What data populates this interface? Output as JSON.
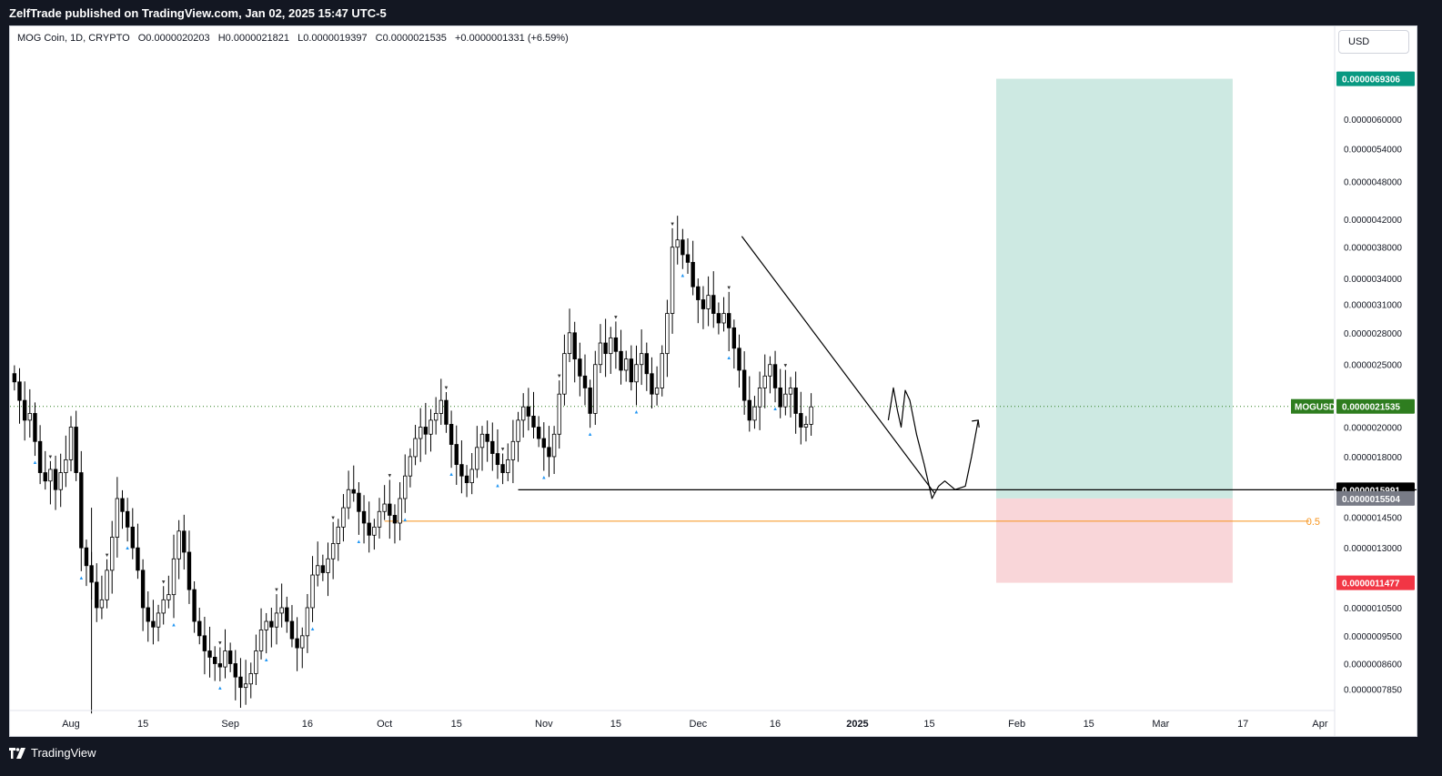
{
  "header": {
    "publisher": "ZelfTrade published on TradingView.com, Jan 02, 2025 15:47 UTC-5"
  },
  "symbol_info": {
    "name": "MOG Coin, 1D, CRYPTO",
    "open": "O0.0000020203",
    "high": "H0.0000021821",
    "low": "L0.0000019397",
    "close": "C0.0000021535",
    "change": "+0.0000001331 (+6.59%)"
  },
  "currency": "USD",
  "footer": {
    "brand": "TradingView"
  },
  "colors": {
    "bull": "#ffffff",
    "bear": "#000000",
    "wick": "#000000",
    "target_zone": "#cde9e2",
    "stop_zone": "#f9d6d9",
    "target_label": "#089981",
    "stop_label": "#f23645",
    "price_label": "#2e7d1f",
    "fib": "#f7931a",
    "arrow": "#2196f3"
  },
  "chart_data": {
    "type": "candlestick",
    "symbol": "MOGUSD",
    "last_price": "0.0000021535",
    "axis_labels": [
      {
        "label": "0.0000060000",
        "value": 6e-06
      },
      {
        "label": "0.0000054000",
        "value": 5.4e-06
      },
      {
        "label": "0.0000048000",
        "value": 4.8e-06
      },
      {
        "label": "0.0000042000",
        "value": 4.2e-06
      },
      {
        "label": "0.0000038000",
        "value": 3.8e-06
      },
      {
        "label": "0.0000034000",
        "value": 3.4e-06
      },
      {
        "label": "0.0000031000",
        "value": 3.1e-06
      },
      {
        "label": "0.0000028000",
        "value": 2.8e-06
      },
      {
        "label": "0.0000025000",
        "value": 2.5e-06
      },
      {
        "label": "0.0000020000",
        "value": 2e-06
      },
      {
        "label": "0.0000018000",
        "value": 1.8e-06
      },
      {
        "label": "0.0000014500",
        "value": 1.45e-06
      },
      {
        "label": "0.0000013000",
        "value": 1.3e-06
      },
      {
        "label": "0.0000010500",
        "value": 1.05e-06
      },
      {
        "label": "0.0000009500",
        "value": 9.5e-07
      },
      {
        "label": "0.0000008600",
        "value": 8.6e-07
      },
      {
        "label": "0.0000007850",
        "value": 7.85e-07
      }
    ],
    "price_markers": [
      {
        "name": "target",
        "label": "0.0000069306",
        "value": 6.9306e-06
      },
      {
        "name": "last",
        "label": "0.0000021535",
        "value": 2.1535e-06
      },
      {
        "name": "support",
        "label": "0.0000015991",
        "value": 1.5991e-06
      },
      {
        "name": "entry",
        "label": "0.0000015504",
        "value": 1.5504e-06
      },
      {
        "name": "stop",
        "label": "0.0000011477",
        "value": 1.1477e-06
      }
    ],
    "fib_level": {
      "label": "0.5",
      "value": 1.43e-06
    },
    "x_ticks": [
      {
        "label": "Aug",
        "day": 0,
        "bold": false
      },
      {
        "label": "15",
        "day": 14,
        "bold": false
      },
      {
        "label": "Sep",
        "day": 31,
        "bold": false
      },
      {
        "label": "16",
        "day": 46,
        "bold": false
      },
      {
        "label": "Oct",
        "day": 61,
        "bold": false
      },
      {
        "label": "15",
        "day": 75,
        "bold": false
      },
      {
        "label": "Nov",
        "day": 92,
        "bold": false
      },
      {
        "label": "15",
        "day": 106,
        "bold": false
      },
      {
        "label": "Dec",
        "day": 122,
        "bold": false
      },
      {
        "label": "16",
        "day": 137,
        "bold": false
      },
      {
        "label": "2025",
        "day": 153,
        "bold": true
      },
      {
        "label": "15",
        "day": 167,
        "bold": false
      },
      {
        "label": "Feb",
        "day": 184,
        "bold": false
      },
      {
        "label": "15",
        "day": 198,
        "bold": false
      },
      {
        "label": "Mar",
        "day": 212,
        "bold": false
      },
      {
        "label": "17",
        "day": 228,
        "bold": false
      },
      {
        "label": "Apr",
        "day": 243,
        "bold": false
      }
    ],
    "candle_start_day": -11,
    "closes_approx": [
      2.35e-06,
      2.2e-06,
      2.05e-06,
      2.1e-06,
      1.9e-06,
      1.7e-06,
      1.65e-06,
      1.72e-06,
      1.6e-06,
      1.7e-06,
      1.78e-06,
      2e-06,
      1.7e-06,
      1.3e-06,
      1.22e-06,
      1.15e-06,
      1.05e-06,
      1.08e-06,
      1.2e-06,
      1.35e-06,
      1.55e-06,
      1.48e-06,
      1.4e-06,
      1.3e-06,
      1.2e-06,
      1.05e-06,
      1e-06,
      9.8e-07,
      1.03e-06,
      1.08e-06,
      1.1e-06,
      1.25e-06,
      1.38e-06,
      1.28e-06,
      1.12e-06,
      1e-06,
      9.5e-07,
      9e-07,
      8.8e-07,
      8.6e-07,
      8.5e-07,
      9e-07,
      8.6e-07,
      8.2e-07,
      7.9e-07,
      8e-07,
      8.3e-07,
      9e-07,
      9.7e-07,
      1e-06,
      9.8e-07,
      1.03e-06,
      1.05e-06,
      1e-06,
      9.4e-07,
      9.1e-07,
      9.5e-07,
      1.05e-06,
      1.18e-06,
      1.22e-06,
      1.19e-06,
      1.25e-06,
      1.32e-06,
      1.4e-06,
      1.5e-06,
      1.6e-06,
      1.58e-06,
      1.48e-06,
      1.42e-06,
      1.36e-06,
      1.4e-06,
      1.48e-06,
      1.52e-06,
      1.46e-06,
      1.42e-06,
      1.55e-06,
      1.68e-06,
      1.8e-06,
      1.92e-06,
      2e-06,
      1.95e-06,
      2.05e-06,
      2.1e-06,
      2.2e-06,
      2.02e-06,
      1.88e-06,
      1.75e-06,
      1.68e-06,
      1.64e-06,
      1.72e-06,
      1.86e-06,
      1.95e-06,
      1.9e-06,
      1.82e-06,
      1.75e-06,
      1.7e-06,
      1.78e-06,
      1.9e-06,
      2.05e-06,
      2.15e-06,
      2.08e-06,
      2e-06,
      1.92e-06,
      1.86e-06,
      1.8e-06,
      1.95e-06,
      2.25e-06,
      2.6e-06,
      2.8e-06,
      2.55e-06,
      2.4e-06,
      2.3e-06,
      2.1e-06,
      2.5e-06,
      2.7e-06,
      2.6e-06,
      2.75e-06,
      2.62e-06,
      2.45e-06,
      2.55e-06,
      2.35e-06,
      2.5e-06,
      2.6e-06,
      2.42e-06,
      2.25e-06,
      2.3e-06,
      2.6e-06,
      3e-06,
      3.8e-06,
      3.9e-06,
      3.7e-06,
      3.6e-06,
      3.3e-06,
      3.15e-06,
      3.05e-06,
      3.2e-06,
      3e-06,
      2.9e-06,
      3e-06,
      2.85e-06,
      2.65e-06,
      2.45e-06,
      2.2e-06,
      2.05e-06,
      2.15e-06,
      2.3e-06,
      2.4e-06,
      2.5e-06,
      2.3e-06,
      2.15e-06,
      2.25e-06,
      2.3e-06,
      2.1e-06,
      2e-06,
      2.02e-06,
      2.15e-06
    ]
  }
}
